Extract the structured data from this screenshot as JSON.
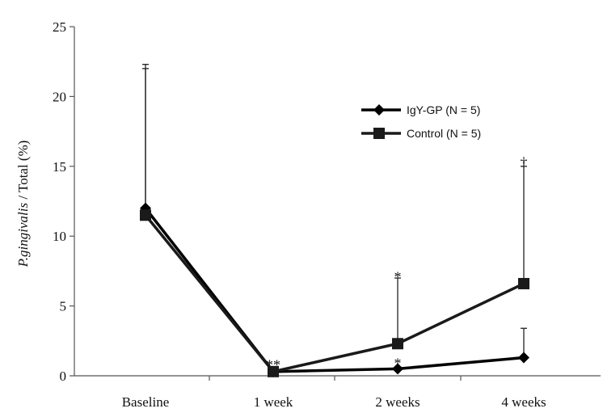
{
  "chart_data": {
    "type": "line",
    "title": "",
    "xlabel": "",
    "ylabel": {
      "italic": "P.gingivalis",
      "rest": " / Total (%)"
    },
    "categories": [
      "Baseline",
      "1 week",
      "2 weeks",
      "4 weeks"
    ],
    "ylim": [
      0,
      25
    ],
    "yticks": [
      "0",
      "5",
      "10",
      "15",
      "20",
      "25"
    ],
    "grid": false,
    "legend_position": "top-right",
    "series": [
      {
        "name": "IgY-GP",
        "legend_label": "IgY-GP  (N = 5)",
        "marker": "diamond",
        "color": "#000000",
        "values": [
          12.0,
          0.3,
          0.5,
          1.3
        ],
        "error_upper": [
          22.3,
          null,
          null,
          3.4
        ]
      },
      {
        "name": "Control",
        "legend_label": "Control  (N = 5)",
        "marker": "square",
        "color": "#1a1a1a",
        "values": [
          11.5,
          0.3,
          2.3,
          6.6
        ],
        "error_upper": [
          22.0,
          null,
          7.0,
          15.0
        ]
      }
    ],
    "annotations": [
      {
        "text": "**",
        "category": "1 week",
        "y": 0.9
      },
      {
        "text": "*",
        "category": "2 weeks",
        "y": 1.0
      },
      {
        "text": "*",
        "category": "2 weeks",
        "y": 7.2
      },
      {
        "text": "†",
        "category": "4 weeks",
        "y": 15.4
      }
    ]
  }
}
